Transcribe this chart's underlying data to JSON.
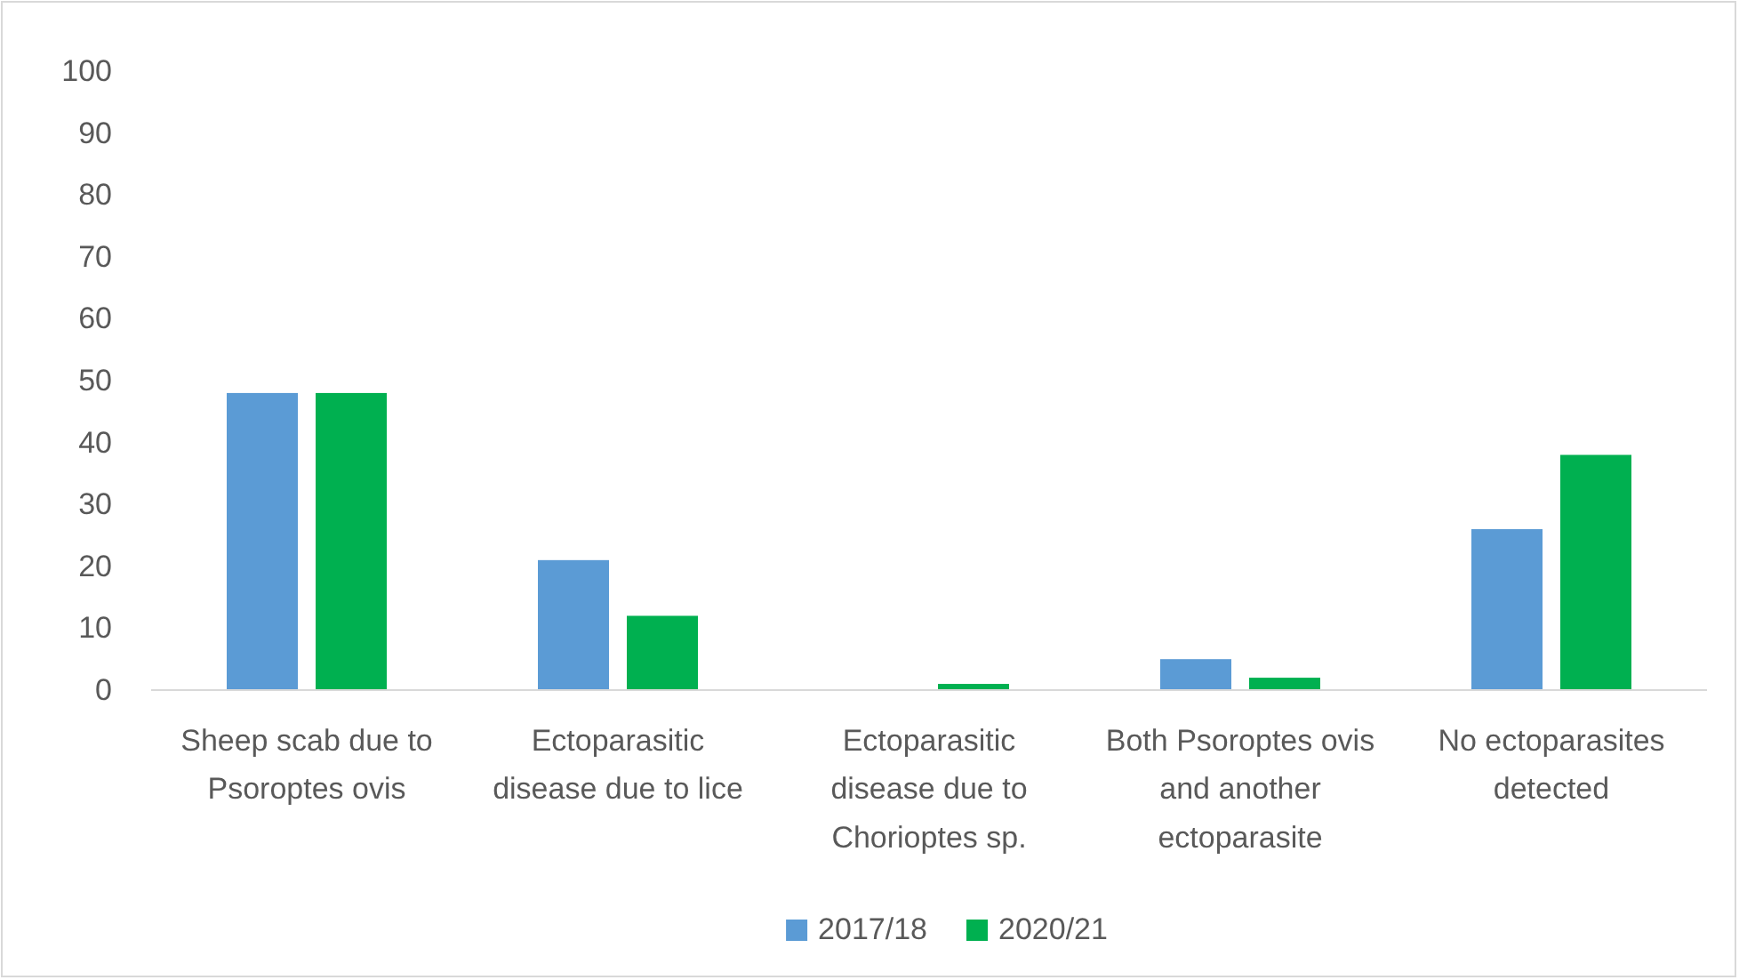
{
  "chart_data": {
    "type": "bar",
    "categories": [
      "Sheep scab due to Psoroptes ovis",
      "Ectoparasitic disease due to lice",
      "Ectoparasitic disease due to Chorioptes sp.",
      "Both Psoroptes ovis and another ectoparasite",
      "No ectoparasites detected"
    ],
    "series": [
      {
        "name": "2017/18",
        "color": "#5b9bd5",
        "values": [
          48,
          21,
          0,
          5,
          26
        ]
      },
      {
        "name": "2020/21",
        "color": "#00b050",
        "values": [
          48,
          12,
          1,
          2,
          38
        ]
      }
    ],
    "ylim": [
      0,
      100
    ],
    "yticks": [
      0,
      10,
      20,
      30,
      40,
      50,
      60,
      70,
      80,
      90,
      100
    ],
    "grid": false,
    "legend": "bottom"
  }
}
